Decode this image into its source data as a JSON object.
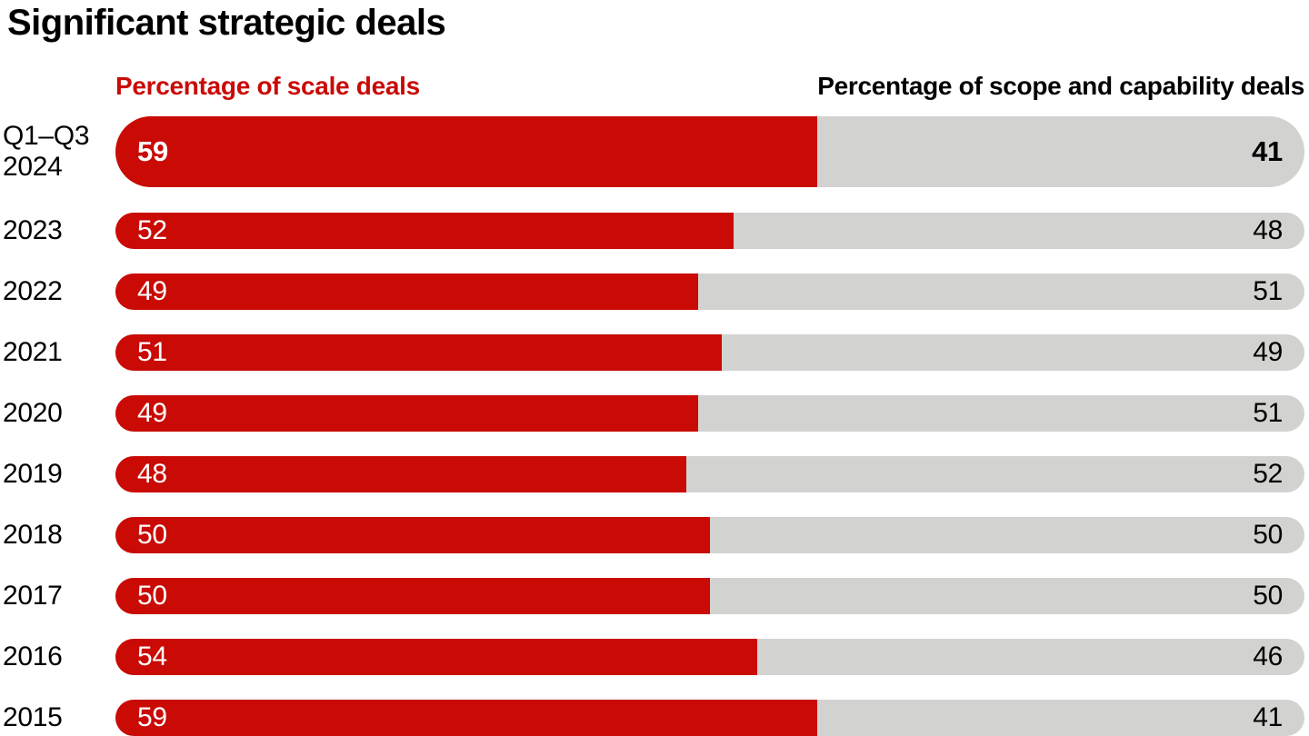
{
  "title": "Significant strategic deals",
  "legend": {
    "left_label": "Percentage of scale deals",
    "right_label": "Percentage of scope and capability deals"
  },
  "colors": {
    "scale_red": "#c90a05",
    "scope_gray": "#d2d2d0",
    "text_black": "#000000",
    "value_on_red": "#ffffff"
  },
  "chart_data": {
    "type": "bar",
    "orientation": "horizontal",
    "stacked": true,
    "unit": "percent",
    "xlim": [
      0,
      100
    ],
    "grid": false,
    "legend_position": "top",
    "title": "Significant strategic deals",
    "categories": [
      "Q1–Q3 2024",
      "2023",
      "2022",
      "2021",
      "2020",
      "2019",
      "2018",
      "2017",
      "2016",
      "2015"
    ],
    "series": [
      {
        "name": "Percentage of scale deals",
        "color": "#c90a05",
        "values": [
          59,
          52,
          49,
          51,
          49,
          48,
          50,
          50,
          54,
          59
        ]
      },
      {
        "name": "Percentage of scope and capability deals",
        "color": "#d2d2d0",
        "values": [
          41,
          48,
          51,
          49,
          51,
          52,
          50,
          50,
          46,
          41
        ]
      }
    ],
    "value_labels": "inside-bar-ends",
    "emphasized_category": "Q1–Q3 2024"
  },
  "rows": [
    {
      "label": "Q1–Q3\n2024",
      "scale": "59",
      "scope": "41",
      "scale_pct": 59,
      "emphasized": true
    },
    {
      "label": "2023",
      "scale": "52",
      "scope": "48",
      "scale_pct": 52,
      "emphasized": false
    },
    {
      "label": "2022",
      "scale": "49",
      "scope": "51",
      "scale_pct": 49,
      "emphasized": false
    },
    {
      "label": "2021",
      "scale": "51",
      "scope": "49",
      "scale_pct": 51,
      "emphasized": false
    },
    {
      "label": "2020",
      "scale": "49",
      "scope": "51",
      "scale_pct": 49,
      "emphasized": false
    },
    {
      "label": "2019",
      "scale": "48",
      "scope": "52",
      "scale_pct": 48,
      "emphasized": false
    },
    {
      "label": "2018",
      "scale": "50",
      "scope": "50",
      "scale_pct": 50,
      "emphasized": false
    },
    {
      "label": "2017",
      "scale": "50",
      "scope": "50",
      "scale_pct": 50,
      "emphasized": false
    },
    {
      "label": "2016",
      "scale": "54",
      "scope": "46",
      "scale_pct": 54,
      "emphasized": false
    },
    {
      "label": "2015",
      "scale": "59",
      "scope": "41",
      "scale_pct": 59,
      "emphasized": false
    }
  ]
}
